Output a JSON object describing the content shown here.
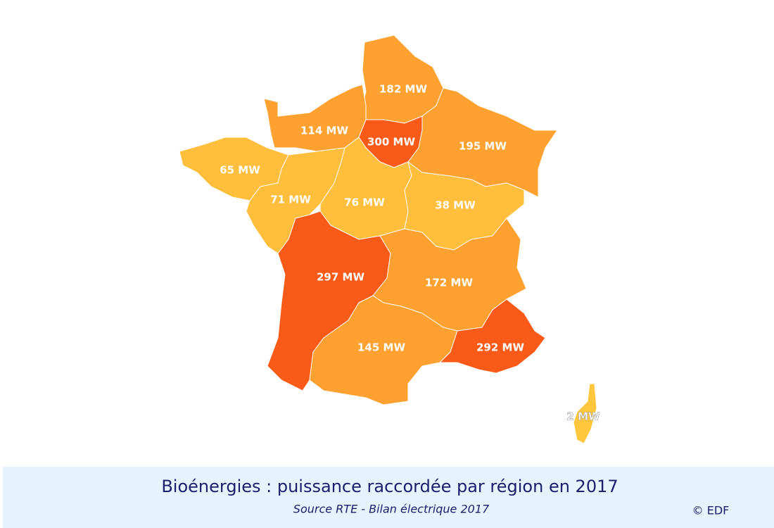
{
  "chart_data": {
    "type": "choropleth",
    "title": "Bioénergies : puissance raccordée par région en 2017",
    "subtitle": "Source RTE - Bilan électrique 2017",
    "credit": "© EDF",
    "values": [
      182,
      114,
      300,
      195,
      65,
      71,
      76,
      38,
      297,
      172,
      145,
      292,
      2
    ],
    "value_labels": [
      "182 MW",
      "114 MW",
      "300 MW",
      "195 MW",
      "65 MW",
      "71 MW",
      "76 MW",
      "38 MW",
      "297 MW",
      "172 MW",
      "145 MW",
      "292 MW",
      "2 MW"
    ],
    "colors": [
      "#ffa130",
      "#ffa130",
      "#fa5a17",
      "#ffa130",
      "#ffbe3c",
      "#ffbe3c",
      "#ffbe3c",
      "#ffbe3c",
      "#fa5a17",
      "#ffa130",
      "#ffa130",
      "#fa5a17",
      "#ffc63e"
    ]
  }
}
